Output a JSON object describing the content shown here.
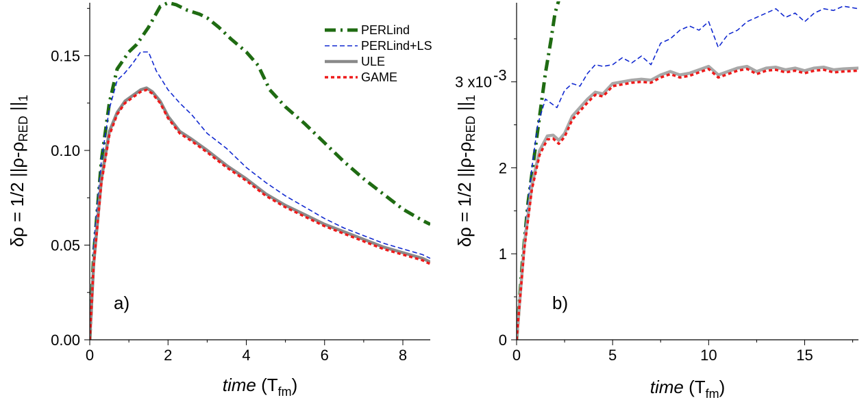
{
  "chart_data": [
    {
      "type": "line",
      "panel_label": "a)",
      "xlabel_italic": "time",
      "xlabel_unit": "(T",
      "xlabel_sub": "fm",
      "xlabel_close": ")",
      "ylabel": "δρ = 1/2 ||ρ-ρ",
      "ylabel_sub": "RED",
      "ylabel_tail": "||",
      "ylabel_tail_sub": "1",
      "xlim": [
        0,
        8.7
      ],
      "ylim": [
        0,
        0.178
      ],
      "xticks": [
        0,
        2,
        4,
        6,
        8
      ],
      "xtick_labels": [
        "0",
        "2",
        "4",
        "6",
        "8"
      ],
      "yticks": [
        0,
        0.05,
        0.1,
        0.15
      ],
      "ytick_labels": [
        "0.00",
        "0.05",
        "0.10",
        "0.15"
      ],
      "legend": {
        "position": "top-right",
        "entries": [
          "PERLind",
          "PERLind+LS",
          "ULE",
          "GAME"
        ]
      },
      "series": [
        {
          "name": "PERLind",
          "color": "#1f6b12",
          "style": "dashdot",
          "width": 5,
          "x": [
            0,
            0.1,
            0.3,
            0.5,
            0.7,
            1.0,
            1.2,
            1.5,
            1.8,
            2.0,
            2.2,
            2.5,
            2.8,
            3.0,
            3.3,
            3.6,
            4.0,
            4.3,
            4.6,
            5.0,
            5.5,
            6.0,
            6.5,
            7.0,
            7.5,
            8.0,
            8.5,
            8.7
          ],
          "y": [
            0,
            0.045,
            0.095,
            0.125,
            0.143,
            0.152,
            0.156,
            0.165,
            0.176,
            0.178,
            0.177,
            0.174,
            0.172,
            0.17,
            0.165,
            0.159,
            0.152,
            0.145,
            0.132,
            0.123,
            0.114,
            0.104,
            0.094,
            0.085,
            0.077,
            0.069,
            0.063,
            0.061
          ]
        },
        {
          "name": "PERLind+LS",
          "color": "#1028d0",
          "style": "dash",
          "width": 1.6,
          "x": [
            0,
            0.1,
            0.3,
            0.5,
            0.7,
            0.9,
            1.1,
            1.3,
            1.5,
            1.7,
            2.0,
            2.3,
            2.6,
            3.0,
            3.5,
            4.0,
            4.5,
            5.0,
            5.5,
            6.0,
            6.5,
            7.0,
            7.5,
            8.0,
            8.5,
            8.7
          ],
          "y": [
            0,
            0.05,
            0.095,
            0.122,
            0.137,
            0.141,
            0.146,
            0.152,
            0.152,
            0.142,
            0.132,
            0.125,
            0.119,
            0.109,
            0.101,
            0.091,
            0.083,
            0.076,
            0.07,
            0.064,
            0.059,
            0.055,
            0.051,
            0.048,
            0.045,
            0.043
          ]
        },
        {
          "name": "ULE",
          "color": "#8a8a8a",
          "style": "solid",
          "width": 4.5,
          "x": [
            0,
            0.1,
            0.3,
            0.5,
            0.7,
            0.9,
            1.1,
            1.3,
            1.45,
            1.6,
            1.8,
            2.0,
            2.3,
            2.6,
            3.0,
            3.5,
            4.0,
            4.5,
            5.0,
            5.5,
            6.0,
            6.5,
            7.0,
            7.5,
            8.0,
            8.5,
            8.7
          ],
          "y": [
            0,
            0.04,
            0.085,
            0.11,
            0.12,
            0.126,
            0.129,
            0.132,
            0.133,
            0.131,
            0.126,
            0.118,
            0.11,
            0.106,
            0.1,
            0.092,
            0.085,
            0.077,
            0.071,
            0.066,
            0.061,
            0.057,
            0.053,
            0.049,
            0.046,
            0.043,
            0.041
          ]
        },
        {
          "name": "GAME",
          "color": "#ee1a1a",
          "style": "dot",
          "width": 3.5,
          "x": [
            0,
            0.1,
            0.3,
            0.5,
            0.7,
            0.9,
            1.1,
            1.3,
            1.45,
            1.6,
            1.8,
            2.0,
            2.3,
            2.6,
            3.0,
            3.5,
            4.0,
            4.5,
            5.0,
            5.5,
            6.0,
            6.5,
            7.0,
            7.5,
            8.0,
            8.5,
            8.7
          ],
          "y": [
            0,
            0.039,
            0.083,
            0.108,
            0.119,
            0.125,
            0.128,
            0.131,
            0.132,
            0.13,
            0.125,
            0.117,
            0.109,
            0.105,
            0.099,
            0.091,
            0.084,
            0.076,
            0.07,
            0.065,
            0.06,
            0.056,
            0.052,
            0.048,
            0.045,
            0.042,
            0.04
          ]
        }
      ]
    },
    {
      "type": "line",
      "panel_label": "b)",
      "xlabel_italic": "time",
      "xlabel_unit": "(T",
      "xlabel_sub": "fm",
      "xlabel_close": ")",
      "ylabel": "δρ = 1/2 ||ρ-ρ",
      "ylabel_sub": "RED",
      "ylabel_tail": "||",
      "ylabel_tail_sub": "1",
      "xlim": [
        0,
        17.8
      ],
      "ylim": [
        0,
        0.00392
      ],
      "xticks": [
        0,
        5,
        10,
        15
      ],
      "xtick_labels": [
        "0",
        "5",
        "10",
        "15"
      ],
      "yticks": [
        0,
        0.001,
        0.002,
        0.003
      ],
      "ytick_labels": [
        "0",
        "1",
        "2",
        "3 x10"
      ],
      "ytick_exponent": "-3",
      "series": [
        {
          "name": "PERLind",
          "color": "#1f6b12",
          "style": "dashdot",
          "width": 5,
          "x": [
            0,
            0.3,
            0.6,
            0.9,
            1.2,
            1.5,
            1.8,
            2.0,
            2.2
          ],
          "y": [
            0,
            0.0009,
            0.0016,
            0.0021,
            0.0026,
            0.0031,
            0.0035,
            0.0038,
            0.00395
          ]
        },
        {
          "name": "PERLind+LS",
          "color": "#1028d0",
          "style": "dash",
          "width": 1.6,
          "x": [
            0,
            0.4,
            0.8,
            1.1,
            1.5,
            1.8,
            2.1,
            2.5,
            2.9,
            3.3,
            3.7,
            4.1,
            4.5,
            5.0,
            5.5,
            6.0,
            6.5,
            7.0,
            7.5,
            8.0,
            8.5,
            9.0,
            9.5,
            10.0,
            10.5,
            11.0,
            11.5,
            12.0,
            12.5,
            13.0,
            13.5,
            14.0,
            14.5,
            15.0,
            15.5,
            16.0,
            16.5,
            17.0,
            17.8
          ],
          "y": [
            0,
            0.0012,
            0.002,
            0.0025,
            0.0028,
            0.00275,
            0.0027,
            0.0029,
            0.00298,
            0.00295,
            0.0031,
            0.0032,
            0.00318,
            0.0032,
            0.00328,
            0.00322,
            0.0033,
            0.0032,
            0.00345,
            0.0035,
            0.0036,
            0.00365,
            0.0036,
            0.0037,
            0.0034,
            0.00355,
            0.0036,
            0.0037,
            0.00375,
            0.0038,
            0.00385,
            0.00375,
            0.0038,
            0.0037,
            0.0038,
            0.00385,
            0.00383,
            0.00388,
            0.00385
          ]
        },
        {
          "name": "ULE",
          "color": "#a8a8a8",
          "style": "solid",
          "width": 4.5,
          "x": [
            0,
            0.4,
            0.8,
            1.2,
            1.6,
            1.9,
            2.2,
            2.5,
            2.9,
            3.3,
            3.7,
            4.1,
            4.5,
            5.0,
            5.5,
            6.0,
            6.5,
            7.0,
            7.5,
            8.0,
            8.5,
            9.0,
            9.5,
            10.0,
            10.5,
            11.0,
            11.5,
            12.0,
            12.5,
            13.0,
            13.5,
            14.0,
            14.5,
            15.0,
            15.5,
            16.0,
            16.5,
            17.0,
            17.8
          ],
          "y": [
            0,
            0.0011,
            0.0018,
            0.0022,
            0.00237,
            0.00238,
            0.00232,
            0.0024,
            0.0026,
            0.0027,
            0.0028,
            0.00288,
            0.00286,
            0.00298,
            0.003,
            0.00302,
            0.00303,
            0.00302,
            0.00308,
            0.00312,
            0.00308,
            0.0031,
            0.00314,
            0.00318,
            0.00308,
            0.00312,
            0.00316,
            0.00318,
            0.00312,
            0.00316,
            0.00317,
            0.00314,
            0.00316,
            0.00313,
            0.00316,
            0.00317,
            0.00314,
            0.00315,
            0.00316
          ]
        },
        {
          "name": "GAME",
          "color": "#ee1a1a",
          "style": "dot",
          "width": 3.5,
          "x": [
            0,
            0.4,
            0.8,
            1.2,
            1.6,
            1.9,
            2.2,
            2.5,
            2.9,
            3.3,
            3.7,
            4.1,
            4.5,
            5.0,
            5.5,
            6.0,
            6.5,
            7.0,
            7.5,
            8.0,
            8.5,
            9.0,
            9.5,
            10.0,
            10.5,
            11.0,
            11.5,
            12.0,
            12.5,
            13.0,
            13.5,
            14.0,
            14.5,
            15.0,
            15.5,
            16.0,
            16.5,
            17.0,
            17.8
          ],
          "y": [
            0,
            0.00105,
            0.00175,
            0.00215,
            0.00233,
            0.00234,
            0.00228,
            0.00236,
            0.00256,
            0.00266,
            0.00276,
            0.00285,
            0.00283,
            0.00295,
            0.00297,
            0.00299,
            0.003,
            0.00299,
            0.00305,
            0.00309,
            0.00305,
            0.00307,
            0.00311,
            0.00315,
            0.00305,
            0.00309,
            0.00313,
            0.00315,
            0.00309,
            0.00313,
            0.00314,
            0.00311,
            0.00313,
            0.0031,
            0.00313,
            0.00314,
            0.00311,
            0.00312,
            0.00313
          ]
        }
      ]
    }
  ]
}
